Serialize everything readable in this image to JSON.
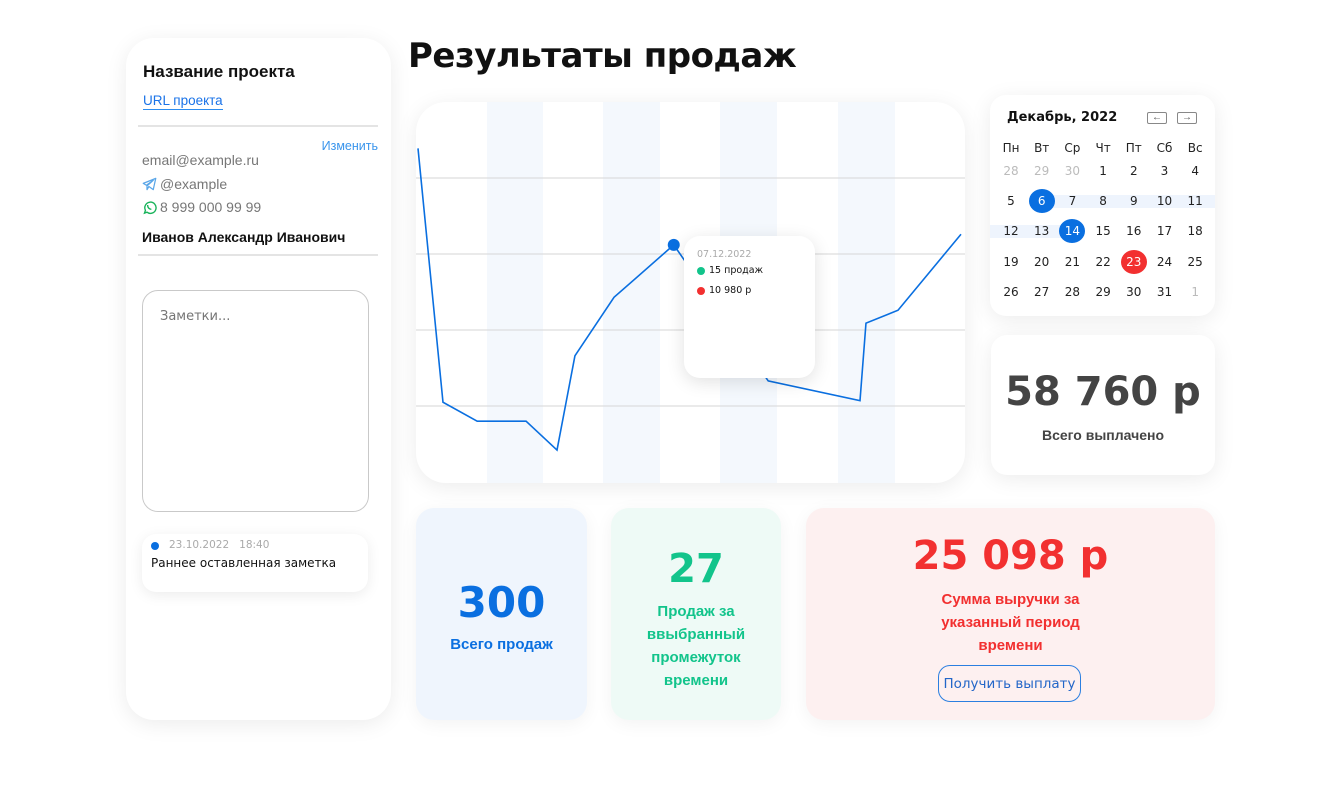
{
  "sidebar": {
    "project_name": "Название проекта",
    "project_url": "URL проекта",
    "edit_label": "Изменить",
    "email": "email@example.ru",
    "telegram": "@example",
    "whatsapp": "8 999 000 99 99",
    "full_name": "Иванов Александр Иванович",
    "notes_placeholder": "Заметки...",
    "saved_note": {
      "date": "23.10.2022",
      "time": "18:40",
      "text": "Раннее оставленная заметка"
    }
  },
  "page_title": "Результаты продаж",
  "chart_data": {
    "type": "line",
    "title": "",
    "xlabel": "",
    "ylabel": "",
    "grid": true,
    "ylim": [
      0,
      5
    ],
    "x": [
      0,
      4.6,
      10.9,
      19.9,
      25.6,
      28.9,
      36.1,
      47.1,
      64.5,
      81.4,
      82.5,
      88.4,
      100
    ],
    "y": [
      4.39,
      1.05,
      0.8,
      0.8,
      0.42,
      1.66,
      2.43,
      3.12,
      1.33,
      1.07,
      2.09,
      2.26,
      3.26
    ],
    "line_color": "#0a6fe0",
    "highlighted_index": 7,
    "tooltip": {
      "date": "07.12.2022",
      "sales": "15 продаж",
      "revenue": "10 980 р",
      "sales_color": "#12c48b",
      "revenue_color": "#f23030"
    }
  },
  "calendar": {
    "title": "Декабрь, 2022",
    "prev_icon": "arrow-left",
    "next_icon": "arrow-right",
    "weekdays": [
      "Пн",
      "Вт",
      "Ср",
      "Чт",
      "Пт",
      "Сб",
      "Вс"
    ],
    "weeks": [
      [
        "28",
        "29",
        "30",
        "1",
        "2",
        "3",
        "4"
      ],
      [
        "5",
        "6",
        "7",
        "8",
        "9",
        "10",
        "11"
      ],
      [
        "12",
        "13",
        "14",
        "15",
        "16",
        "17",
        "18"
      ],
      [
        "19",
        "20",
        "21",
        "22",
        "23",
        "24",
        "25"
      ],
      [
        "26",
        "27",
        "28",
        "29",
        "30",
        "31",
        "1"
      ]
    ],
    "range_start": "6",
    "range_end": "14",
    "today": "23"
  },
  "total_paid": {
    "value": "58 760 р",
    "label": "Всего выплачено"
  },
  "stats": {
    "total_sales": {
      "value": "300",
      "label": "Всего продаж",
      "color": "#0a6fe0"
    },
    "period_sales": {
      "value": "27",
      "label": "Продаж за ввыбранный промежуток времени",
      "color": "#12c48b"
    },
    "revenue": {
      "value": "25 098 р",
      "label": "Сумма выручки за указанный период времени",
      "color": "#f23030",
      "button": "Получить выплату"
    }
  }
}
